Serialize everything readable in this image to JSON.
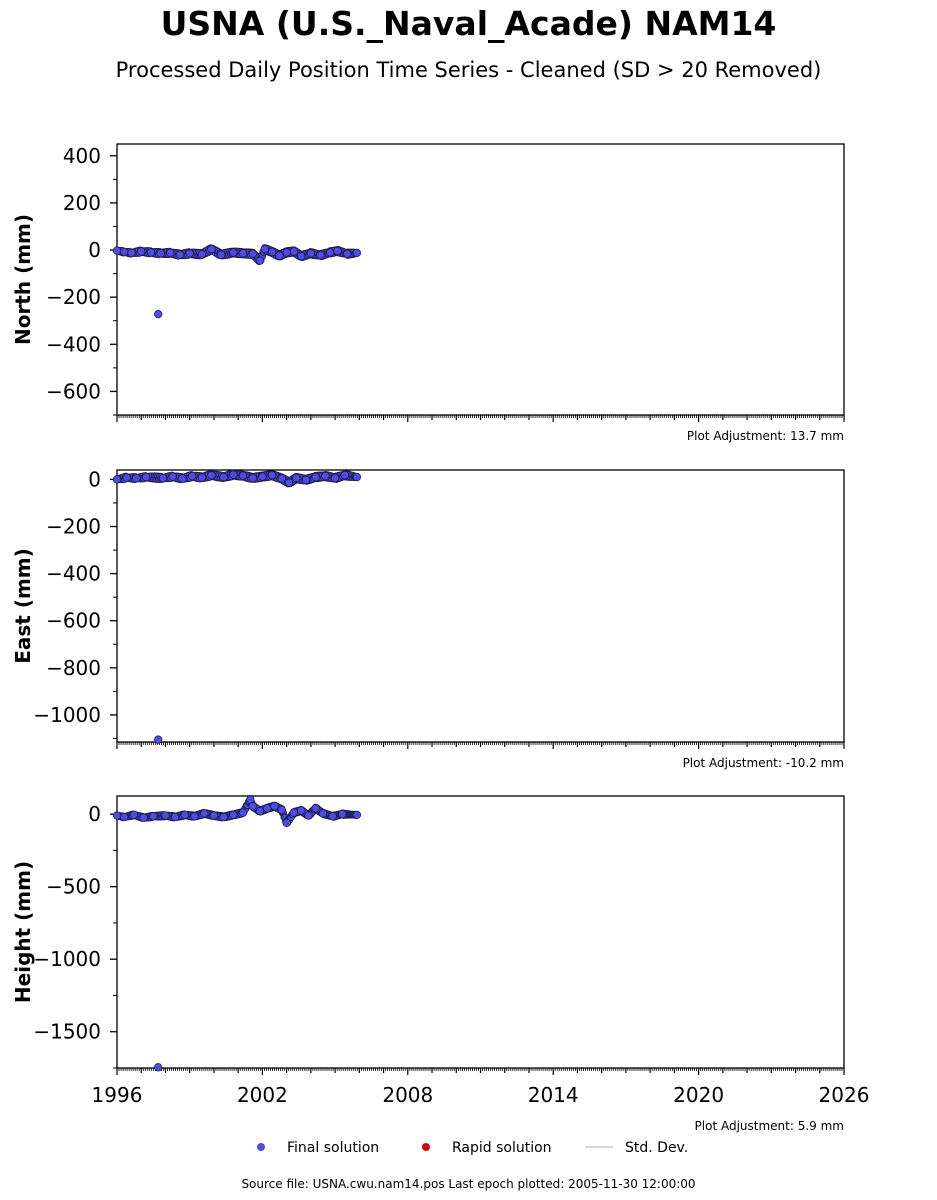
{
  "header": {
    "title": "USNA (U.S._Naval_Acade) NAM14",
    "subtitle": "Processed Daily Position Time Series - Cleaned (SD > 20 Removed)"
  },
  "footer": {
    "source": "Source file: USNA.cwu.nam14.pos  Last epoch plotted: 2005-11-30 12:00:00"
  },
  "colors": {
    "final": "#4d4de6",
    "final_edge": "#1a1a40",
    "rapid": "#dd0000",
    "stddev": "#cccccc"
  },
  "chart_data": [
    {
      "type": "scatter",
      "ylabel": "North (mm)",
      "ylim": [
        -700,
        450
      ],
      "yticks": [
        400,
        200,
        0,
        -200,
        -400,
        -600
      ],
      "xlim": [
        1996,
        2026
      ],
      "adjustment": "Plot Adjustment: 13.7 mm",
      "series": [
        {
          "name": "Final solution",
          "points": [
            [
              1996.0,
              -2
            ],
            [
              1996.3,
              -8
            ],
            [
              1996.6,
              -12
            ],
            [
              1997.0,
              -6
            ],
            [
              1997.4,
              -10
            ],
            [
              1997.7,
              -272
            ],
            [
              1997.8,
              -14
            ],
            [
              1998.2,
              -12
            ],
            [
              1998.6,
              -20
            ],
            [
              1999.0,
              -14
            ],
            [
              1999.5,
              -18
            ],
            [
              1999.9,
              4
            ],
            [
              2000.3,
              -20
            ],
            [
              2000.8,
              -10
            ],
            [
              2001.2,
              -14
            ],
            [
              2001.6,
              -16
            ],
            [
              2001.9,
              -45
            ],
            [
              2002.1,
              4
            ],
            [
              2002.4,
              -8
            ],
            [
              2002.7,
              -24
            ],
            [
              2003.0,
              -10
            ],
            [
              2003.3,
              -6
            ],
            [
              2003.6,
              -26
            ],
            [
              2004.0,
              -14
            ],
            [
              2004.4,
              -22
            ],
            [
              2004.8,
              -10
            ],
            [
              2005.1,
              -4
            ],
            [
              2005.5,
              -16
            ],
            [
              2005.9,
              -12
            ]
          ]
        }
      ]
    },
    {
      "type": "scatter",
      "ylabel": "East (mm)",
      "ylim": [
        -1115,
        40
      ],
      "yticks": [
        0,
        -200,
        -400,
        -600,
        -800,
        -1000
      ],
      "xlim": [
        1996,
        2026
      ],
      "adjustment": "Plot Adjustment: -10.2 mm",
      "series": [
        {
          "name": "Final solution",
          "points": [
            [
              1996.0,
              0
            ],
            [
              1996.4,
              8
            ],
            [
              1996.8,
              5
            ],
            [
              1997.2,
              10
            ],
            [
              1997.7,
              -1105
            ],
            [
              1997.9,
              6
            ],
            [
              1998.3,
              12
            ],
            [
              1998.7,
              4
            ],
            [
              1999.1,
              14
            ],
            [
              1999.5,
              8
            ],
            [
              1999.9,
              18
            ],
            [
              2000.4,
              10
            ],
            [
              2000.8,
              20
            ],
            [
              2001.2,
              16
            ],
            [
              2001.6,
              6
            ],
            [
              2002.0,
              12
            ],
            [
              2002.4,
              18
            ],
            [
              2002.8,
              4
            ],
            [
              2003.1,
              -14
            ],
            [
              2003.4,
              6
            ],
            [
              2003.8,
              -2
            ],
            [
              2004.2,
              10
            ],
            [
              2004.6,
              14
            ],
            [
              2005.0,
              6
            ],
            [
              2005.4,
              18
            ],
            [
              2005.9,
              10
            ]
          ]
        }
      ]
    },
    {
      "type": "scatter",
      "ylabel": "Height (mm)",
      "ylim": [
        -1750,
        125
      ],
      "yticks": [
        0,
        -500,
        -1000,
        -1500
      ],
      "xlim": [
        1996,
        2026
      ],
      "xticks": [
        1996,
        2002,
        2008,
        2014,
        2020,
        2026
      ],
      "adjustment": "Plot Adjustment: 5.9 mm",
      "series": [
        {
          "name": "Final solution",
          "points": [
            [
              1996.0,
              -10
            ],
            [
              1996.3,
              -20
            ],
            [
              1996.7,
              -5
            ],
            [
              1997.1,
              -25
            ],
            [
              1997.5,
              -15
            ],
            [
              1997.7,
              -1745
            ],
            [
              1998.0,
              -10
            ],
            [
              1998.4,
              -20
            ],
            [
              1998.8,
              -5
            ],
            [
              1999.2,
              -15
            ],
            [
              1999.6,
              5
            ],
            [
              2000.0,
              -10
            ],
            [
              2000.4,
              -20
            ],
            [
              2000.8,
              -5
            ],
            [
              2001.2,
              10
            ],
            [
              2001.5,
              100
            ],
            [
              2001.6,
              55
            ],
            [
              2001.9,
              20
            ],
            [
              2002.2,
              40
            ],
            [
              2002.5,
              55
            ],
            [
              2002.8,
              30
            ],
            [
              2003.0,
              -60
            ],
            [
              2003.3,
              10
            ],
            [
              2003.6,
              25
            ],
            [
              2003.9,
              -10
            ],
            [
              2004.2,
              40
            ],
            [
              2004.5,
              5
            ],
            [
              2004.9,
              -15
            ],
            [
              2005.3,
              0
            ],
            [
              2005.9,
              -5
            ]
          ]
        }
      ]
    }
  ],
  "legend": {
    "placement": "bottom-center",
    "items": [
      {
        "label": "Final solution",
        "kind": "dot",
        "color_key": "final"
      },
      {
        "label": "Rapid solution",
        "kind": "dot",
        "color_key": "rapid"
      },
      {
        "label": "Std. Dev.",
        "kind": "line",
        "color_key": "stddev"
      }
    ]
  }
}
